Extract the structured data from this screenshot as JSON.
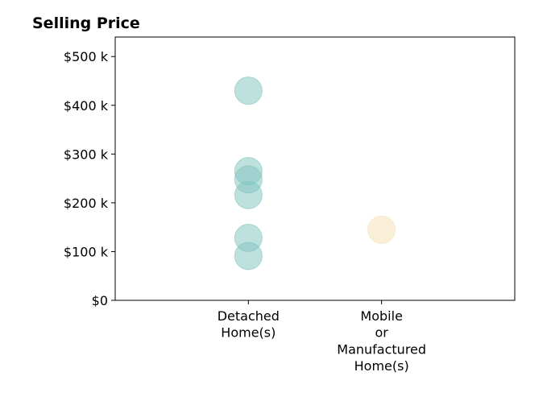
{
  "chart_data": {
    "type": "scatter",
    "title": "Selling Price",
    "xlabel": "",
    "ylabel": "",
    "categories": [
      "Detached Home(s)",
      "Mobile or Manufactured Home(s)"
    ],
    "category_label_lines": [
      [
        "Detached",
        "Home(s)"
      ],
      [
        "Mobile",
        "or",
        "Manufactured",
        "Home(s)"
      ]
    ],
    "ylim": [
      0,
      540000
    ],
    "yticks": [
      0,
      100000,
      200000,
      300000,
      400000,
      500000
    ],
    "ytick_labels": [
      "$0",
      "$100 k",
      "$200 k",
      "$300 k",
      "$400 k",
      "$500 k"
    ],
    "grid": false,
    "legend": "none",
    "series": [
      {
        "category": "Detached Home(s)",
        "color": "#7fc4bd",
        "values": [
          430000,
          265000,
          248000,
          216000,
          128000,
          91000
        ]
      },
      {
        "category": "Mobile or Manufactured Home(s)",
        "color": "#f6dfb2",
        "values": [
          145000
        ]
      }
    ]
  }
}
